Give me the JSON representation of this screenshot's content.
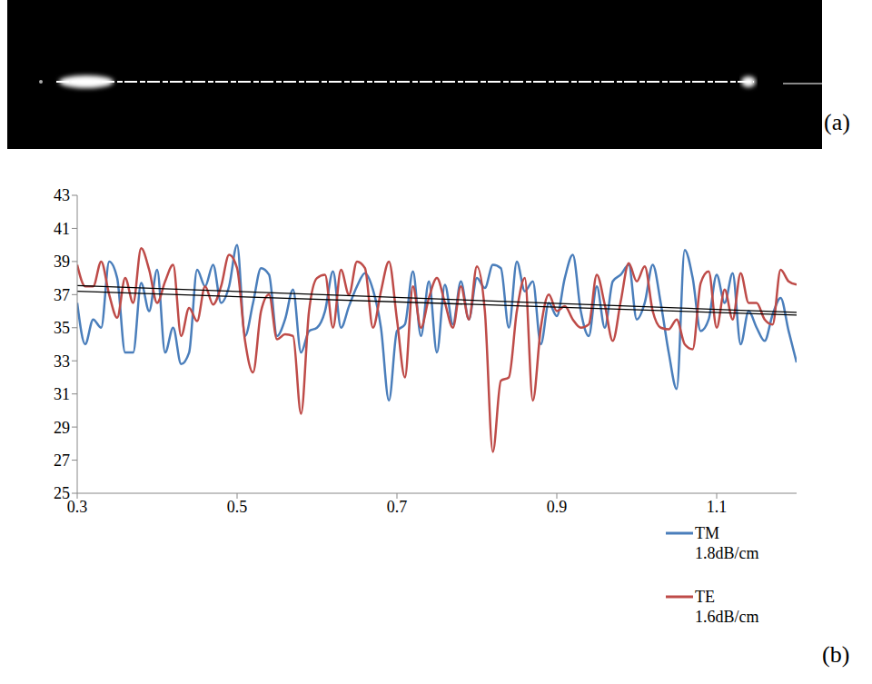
{
  "panel_labels": [
    "(a)",
    "(b)"
  ],
  "chart_data": {
    "type": "line",
    "x": [
      0.3,
      0.31,
      0.32,
      0.33,
      0.34,
      0.35,
      0.36,
      0.37,
      0.38,
      0.39,
      0.4,
      0.41,
      0.42,
      0.43,
      0.44,
      0.45,
      0.46,
      0.47,
      0.48,
      0.49,
      0.5,
      0.51,
      0.52,
      0.53,
      0.54,
      0.55,
      0.56,
      0.57,
      0.58,
      0.59,
      0.6,
      0.61,
      0.62,
      0.63,
      0.64,
      0.65,
      0.66,
      0.67,
      0.68,
      0.69,
      0.7,
      0.71,
      0.72,
      0.73,
      0.74,
      0.75,
      0.76,
      0.77,
      0.78,
      0.79,
      0.8,
      0.81,
      0.82,
      0.83,
      0.84,
      0.85,
      0.86,
      0.87,
      0.88,
      0.89,
      0.9,
      0.91,
      0.92,
      0.93,
      0.94,
      0.95,
      0.96,
      0.97,
      0.98,
      0.99,
      1.0,
      1.01,
      1.02,
      1.03,
      1.04,
      1.05,
      1.06,
      1.07,
      1.08,
      1.09,
      1.1,
      1.11,
      1.12,
      1.13,
      1.14,
      1.15,
      1.16,
      1.17,
      1.18,
      1.19,
      1.2
    ],
    "series": [
      {
        "name": "TM 1.8dB/cm",
        "color": "#4a7ebb",
        "values": [
          36.5,
          34.0,
          35.5,
          35.0,
          39.0,
          38.0,
          33.5,
          33.5,
          37.7,
          36.0,
          38.5,
          33.5,
          35.0,
          32.8,
          33.5,
          38.5,
          37.5,
          38.8,
          36.5,
          37.5,
          40.0,
          34.5,
          36.5,
          38.6,
          38.2,
          34.5,
          35.5,
          37.3,
          33.5,
          34.8,
          35.0,
          36.0,
          38.4,
          35.0,
          36.3,
          37.5,
          38.3,
          37.3,
          35.0,
          30.6,
          34.8,
          35.2,
          38.4,
          34.5,
          37.8,
          33.5,
          37.6,
          35.2,
          37.8,
          35.5,
          38.0,
          37.4,
          38.8,
          38.6,
          35.0,
          39.0,
          37.2,
          37.8,
          34.0,
          36.5,
          35.7,
          38.0,
          39.4,
          36.0,
          34.5,
          37.5,
          35.0,
          37.8,
          38.2,
          38.8,
          35.5,
          36.5,
          38.8,
          36.5,
          33.5,
          31.3,
          39.7,
          38.0,
          34.8,
          35.5,
          38.2,
          36.5,
          38.3,
          34.0,
          36.0,
          35.0,
          34.2,
          35.8,
          36.8,
          34.8,
          32.9
        ],
        "fit": {
          "x": [
            0.3,
            1.2
          ],
          "values": [
            37.55,
            35.93
          ]
        }
      },
      {
        "name": "TE 1.6dB/cm",
        "color": "#be4b48",
        "values": [
          38.8,
          37.5,
          37.5,
          39.0,
          37.0,
          35.6,
          38.0,
          36.5,
          39.8,
          38.5,
          36.5,
          37.8,
          38.8,
          34.5,
          36.2,
          35.4,
          37.5,
          36.4,
          37.5,
          39.4,
          38.6,
          34.2,
          32.3,
          36.0,
          37.0,
          34.3,
          34.6,
          34.5,
          29.8,
          36.0,
          38.0,
          38.2,
          35.0,
          38.5,
          37.0,
          39.0,
          38.6,
          35.0,
          37.2,
          39.0,
          35.5,
          32.0,
          37.5,
          35.0,
          36.8,
          38.0,
          36.5,
          35.0,
          37.5,
          35.5,
          38.7,
          36.0,
          27.5,
          31.8,
          32.0,
          36.0,
          38.0,
          30.6,
          35.0,
          37.0,
          36.0,
          36.3,
          35.5,
          35.0,
          35.2,
          38.2,
          36.4,
          34.2,
          36.6,
          38.9,
          37.8,
          38.7,
          36.0,
          35.0,
          34.9,
          35.5,
          34.0,
          33.7,
          37.7,
          38.4,
          35.0,
          37.3,
          35.5,
          38.3,
          36.5,
          36.5,
          35.5,
          35.2,
          38.5,
          37.8,
          37.6
        ],
        "fit": {
          "x": [
            0.3,
            1.2
          ],
          "values": [
            37.2,
            35.76
          ]
        }
      }
    ],
    "xlim": [
      0.3,
      1.2
    ],
    "xticks": [
      0.3,
      0.5,
      0.7,
      0.9,
      1.1
    ],
    "ylim": [
      25,
      43
    ],
    "yticks": [
      25,
      27,
      29,
      31,
      33,
      35,
      37,
      39,
      41,
      43
    ],
    "grid": false,
    "legend": "lower right"
  }
}
